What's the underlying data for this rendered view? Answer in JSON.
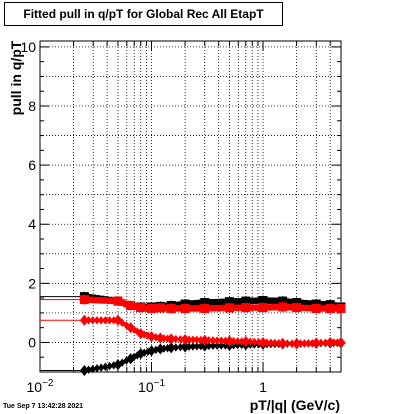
{
  "title": "Fitted pull in q/pT for Global Rec All EtapT",
  "datestamp": "Tue Sep  7 13:42:28 2021",
  "chart_data": {
    "type": "scatter",
    "title": "Fitted pull in q/pT for Global Rec All EtapT",
    "xlabel": "pT/|q| (GeV/c)",
    "ylabel": "pull in q/pT",
    "xscale": "log",
    "xlim": [
      0.01,
      5.0
    ],
    "ylim": [
      -1.0,
      10.2
    ],
    "grid": true,
    "x_ticks": [
      {
        "value": 0.01,
        "base": "10",
        "exp": "−2"
      },
      {
        "value": 0.1,
        "base": "10",
        "exp": "−1"
      },
      {
        "value": 1,
        "base": "1",
        "exp": ""
      }
    ],
    "y_ticks": [
      "0",
      "2",
      "4",
      "6",
      "8",
      "10"
    ],
    "series": [
      {
        "color": "#000000",
        "marker": "square",
        "x": [
          0.025,
          0.05,
          0.065,
          0.08,
          0.1,
          0.12,
          0.15,
          0.2,
          0.3,
          0.5,
          0.7,
          1.0,
          1.5,
          2.0,
          3.0,
          4.0,
          5.0
        ],
        "y": [
          1.55,
          1.4,
          1.25,
          1.2,
          1.2,
          1.22,
          1.25,
          1.3,
          1.35,
          1.38,
          1.4,
          1.42,
          1.4,
          1.35,
          1.3,
          1.28,
          1.2
        ]
      },
      {
        "color": "#ff0000",
        "marker": "square",
        "x": [
          0.025,
          0.05,
          0.065,
          0.08,
          0.1,
          0.12,
          0.15,
          0.2,
          0.3,
          0.5,
          0.7,
          1.0,
          1.5,
          2.0,
          3.0,
          4.0,
          5.0
        ],
        "y": [
          1.45,
          1.4,
          1.25,
          1.18,
          1.15,
          1.17,
          1.15,
          1.15,
          1.15,
          1.17,
          1.18,
          1.18,
          1.2,
          1.18,
          1.15,
          1.15,
          1.15
        ]
      },
      {
        "color": "#000000",
        "marker": "diamond",
        "x": [
          0.025,
          0.05,
          0.065,
          0.08,
          0.1,
          0.12,
          0.15,
          0.2,
          0.3,
          0.5,
          0.7,
          1.0,
          1.5,
          2.0,
          3.0,
          4.0,
          5.0
        ],
        "y": [
          -0.95,
          -0.75,
          -0.55,
          -0.38,
          -0.28,
          -0.22,
          -0.18,
          -0.15,
          -0.12,
          -0.1,
          -0.08,
          -0.06,
          -0.05,
          -0.04,
          -0.03,
          -0.02,
          -0.02
        ]
      },
      {
        "color": "#ff0000",
        "marker": "diamond",
        "x": [
          0.025,
          0.05,
          0.065,
          0.08,
          0.1,
          0.12,
          0.15,
          0.2,
          0.3,
          0.5,
          0.7,
          1.0,
          1.5,
          2.0,
          3.0,
          4.0,
          5.0
        ],
        "y": [
          0.75,
          0.75,
          0.5,
          0.3,
          0.2,
          0.15,
          0.12,
          0.1,
          0.08,
          0.05,
          0.03,
          0.0,
          -0.03,
          -0.05,
          -0.02,
          0.0,
          0.0
        ]
      }
    ],
    "side_lines": [
      {
        "color": "#000000",
        "y": 1.55
      },
      {
        "color": "#ff0000",
        "y": 1.45
      },
      {
        "color": "#ff0000",
        "y": 0.75
      },
      {
        "color": "#000000",
        "y": -0.95
      }
    ]
  }
}
